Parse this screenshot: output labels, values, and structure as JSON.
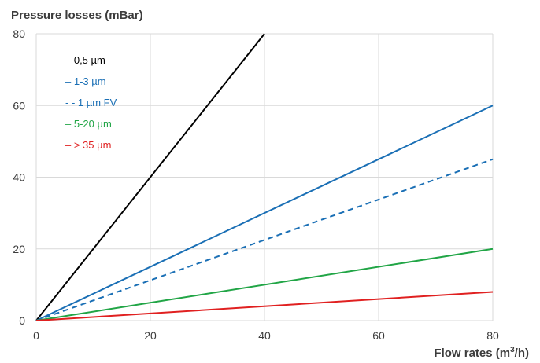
{
  "chart_data": {
    "type": "line",
    "ylabel": "Pressure losses (mBar)",
    "xlabel_main": "Flow rates (m",
    "xlabel_sup": "3",
    "xlabel_end": "/h)",
    "xlim": [
      0,
      80
    ],
    "ylim": [
      0,
      80
    ],
    "x_ticks": [
      0,
      20,
      40,
      60,
      80
    ],
    "y_ticks": [
      0,
      20,
      40,
      60,
      80
    ],
    "x_tick_labels": [
      "0",
      "20",
      "40",
      "60",
      "80"
    ],
    "y_tick_labels": [
      "0",
      "20",
      "40",
      "60",
      "80"
    ],
    "grid": true,
    "legend_position": "top-left",
    "series": [
      {
        "name": "0,5 µm",
        "legend_label": "– 0,5 µm",
        "color": "#000000",
        "dash": "solid",
        "x": [
          0,
          40
        ],
        "y": [
          0,
          80
        ]
      },
      {
        "name": "1-3 µm",
        "legend_label": "– 1-3 µm",
        "color": "#1a6fb5",
        "dash": "solid",
        "x": [
          0,
          80
        ],
        "y": [
          0,
          60
        ]
      },
      {
        "name": "1 µm FV",
        "legend_label": "- - 1 µm FV",
        "color": "#1a6fb5",
        "dash": "dashed",
        "x": [
          0,
          80
        ],
        "y": [
          0,
          45
        ]
      },
      {
        "name": "5-20 µm",
        "legend_label": "– 5-20 µm",
        "color": "#21a546",
        "dash": "solid",
        "x": [
          0,
          80
        ],
        "y": [
          0,
          20
        ]
      },
      {
        "name": "> 35 µm",
        "legend_label": "– > 35 µm",
        "color": "#e02020",
        "dash": "solid",
        "x": [
          0,
          80
        ],
        "y": [
          0,
          8
        ]
      }
    ]
  }
}
